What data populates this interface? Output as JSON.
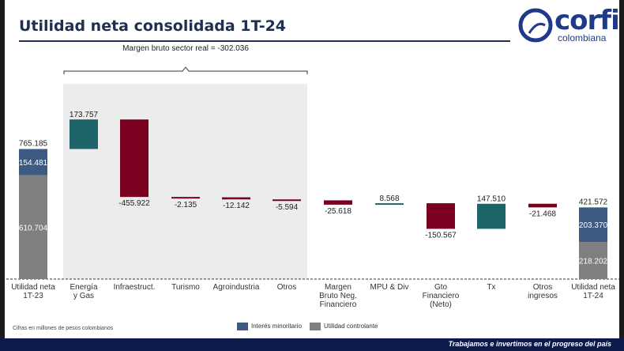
{
  "header": {
    "title": "Utilidad neta consolidada 1T-24",
    "logo_text": "corfi",
    "logo_subtext": "colombiana"
  },
  "footnote": "Cifras en millones de pesos colombianos",
  "footer": {
    "tagline": "Trabajamos e invertimos en el progreso del país"
  },
  "colors": {
    "teal": "#1f6468",
    "maroon": "#7a0020",
    "blue": "#3c5a82",
    "gray": "#7f7f7f",
    "shade": "#ececec",
    "navy": "#0d1b4a"
  },
  "chart_data": {
    "type": "bar",
    "subtype": "waterfall",
    "title": "Utilidad neta consolidada 1T-24",
    "units": "Cifras en millones de pesos colombianos",
    "bracket_label": "Margen bruto sector real = -302.036",
    "categories": [
      "Utilidad neta 1T-23",
      "Energía y Gas",
      "Infraestruct.",
      "Turismo",
      "Agroindustria",
      "Otros",
      "Margen Bruto Neg. Financiero",
      "MPU & Div",
      "Gto Financiero (Neto)",
      "Tx",
      "Otros ingresos",
      "Utilidad neta 1T-24"
    ],
    "category_lines": [
      [
        "Utilidad neta",
        "1T-23"
      ],
      [
        "Energía",
        "y Gas"
      ],
      [
        "Infraestruct."
      ],
      [
        "Turismo"
      ],
      [
        "Agroindustria"
      ],
      [
        "Otros"
      ],
      [
        "Margen",
        "Bruto Neg.",
        "Financiero"
      ],
      [
        "MPU & Div"
      ],
      [
        "Gto",
        "Financiero",
        "(Neto)"
      ],
      [
        "Tx"
      ],
      [
        "Otros",
        "ingresos"
      ],
      [
        "Utilidad neta",
        "1T-24"
      ]
    ],
    "changes": [
      null,
      173757,
      -455922,
      -2135,
      -12142,
      -5594,
      -25618,
      8568,
      -150567,
      147510,
      -21468,
      null
    ],
    "change_labels": [
      "",
      "173.757",
      "-455.922",
      "-2.135",
      "-12.142",
      "-5.594",
      "-25.618",
      "8.568",
      "-150.567",
      "147.510",
      "-21.468",
      ""
    ],
    "totals": [
      {
        "index": 0,
        "total": 765185,
        "total_label": "765.185",
        "controlante": 610704,
        "controlante_label": "610.704",
        "minoritario": 154481,
        "minoritario_label": "154.481"
      },
      {
        "index": 11,
        "total": 421572,
        "total_label": "421.572",
        "controlante": 218202,
        "controlante_label": "218.202",
        "minoritario": 203370,
        "minoritario_label": "203.370"
      }
    ],
    "shaded_range": [
      1,
      5
    ],
    "legend": [
      {
        "name": "Interés minoritario",
        "color": "#3c5a82"
      },
      {
        "name": "Utilidad controlante",
        "color": "#7f7f7f"
      }
    ],
    "ylim": [
      0,
      1000000
    ]
  }
}
